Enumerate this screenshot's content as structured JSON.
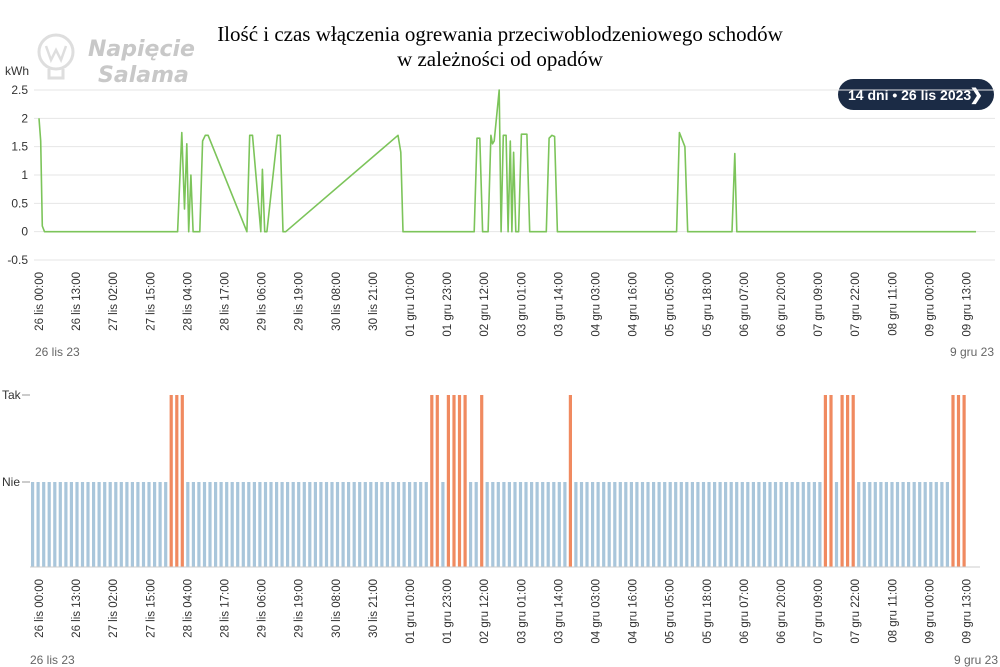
{
  "title": {
    "line1": "Ilość i czas włączenia ogrewania przeciwoblodzeniowego schodów",
    "line2": "w zależności od opadów"
  },
  "logo": {
    "line1": "Napięcie",
    "line2": "Salama"
  },
  "period_button": {
    "label": "14 dni • 26 lis 2023",
    "icon": "chevron-right-icon"
  },
  "colors": {
    "energy_line": "#7cc45a",
    "off": "#a9c6db",
    "on": "#f08a60",
    "button_bg": "#1b2b45"
  },
  "chart_data": [
    {
      "type": "line",
      "ylabel": "kWh",
      "ylim": [
        -0.5,
        2.5
      ],
      "yticks": [
        "2.5",
        "2",
        "1.5",
        "1",
        "0.5",
        "0",
        "-0.5"
      ],
      "xticks": [
        "26 lis 00:00",
        "26 lis 13:00",
        "27 lis 02:00",
        "27 lis 15:00",
        "28 lis 04:00",
        "28 lis 17:00",
        "29 lis 06:00",
        "29 lis 19:00",
        "30 lis 08:00",
        "30 lis 21:00",
        "01 gru 10:00",
        "01 gru 23:00",
        "02 gru 12:00",
        "03 gru 01:00",
        "03 gru 14:00",
        "04 gru 03:00",
        "04 gru 16:00",
        "05 gru 05:00",
        "05 gru 18:00",
        "06 gru 07:00",
        "06 gru 20:00",
        "07 gru 09:00",
        "07 gru 22:00",
        "08 gru 11:00",
        "09 gru 00:00",
        "09 gru 13:00"
      ],
      "x_start_label": "26 lis 23",
      "x_end_label": "9 gru 23",
      "grid": true,
      "series": [
        {
          "x_hours": [
            0,
            0.6,
            1.2,
            2,
            50,
            51.5,
            52.5,
            53.3,
            54,
            54.8,
            55.6,
            58,
            59,
            60,
            61,
            75,
            76,
            77,
            80,
            80.6,
            81.4,
            82.2,
            86,
            87,
            88,
            89,
            129.5,
            130.5,
            131.3,
            157,
            158,
            159,
            160,
            162,
            163,
            163.6,
            164.2,
            166,
            166.7,
            167.5,
            168.5,
            169.2,
            170,
            170.6,
            171.2,
            172,
            173,
            174,
            175,
            176,
            177,
            183,
            184,
            185,
            186,
            187,
            230,
            231,
            233,
            234,
            235,
            250,
            251,
            251.7,
            252.5,
            259,
            260,
            261,
            262,
            281,
            282,
            283,
            284,
            285,
            304,
            305,
            305.5,
            306,
            321,
            322,
            323,
            324,
            325,
            326,
            338
          ],
          "values": [
            2.0,
            1.6,
            0.1,
            0,
            0,
            1.75,
            0.4,
            1.55,
            0,
            1.0,
            0,
            0,
            1.6,
            1.7,
            1.7,
            0,
            1.7,
            1.7,
            0,
            1.1,
            0,
            0,
            1.7,
            1.7,
            0,
            0,
            1.7,
            1.4,
            0,
            0,
            1.65,
            1.65,
            0,
            0,
            1.7,
            1.55,
            1.6,
            2.5,
            0,
            1.7,
            1.7,
            0,
            1.6,
            0,
            1.4,
            0,
            0,
            1.72,
            1.72,
            1.72,
            0,
            0,
            1.65,
            1.7,
            1.68,
            0,
            0,
            1.75,
            1.5,
            0,
            0,
            0,
            1.38,
            0,
            0,
            0,
            0,
            0,
            0,
            0,
            0,
            0,
            0,
            0,
            0,
            0,
            0,
            0,
            0,
            0,
            0,
            0,
            0,
            0,
            0
          ]
        }
      ]
    },
    {
      "type": "bar",
      "ylabel": "",
      "yticks": [
        "Tak",
        "Nie"
      ],
      "xticks": [
        "26 lis 00:00",
        "26 lis 13:00",
        "27 lis 02:00",
        "27 lis 15:00",
        "28 lis 04:00",
        "28 lis 17:00",
        "29 lis 06:00",
        "29 lis 19:00",
        "30 lis 08:00",
        "30 lis 21:00",
        "01 gru 10:00",
        "01 gru 23:00",
        "02 gru 12:00",
        "03 gru 01:00",
        "03 gru 14:00",
        "04 gru 03:00",
        "04 gru 16:00",
        "05 gru 05:00",
        "05 gru 18:00",
        "06 gru 07:00",
        "06 gru 20:00",
        "07 gru 09:00",
        "07 gru 22:00",
        "08 gru 11:00",
        "09 gru 00:00",
        "09 gru 13:00"
      ],
      "x_start_label": "26 lis 23",
      "x_end_label": "9 gru 23",
      "on_hour_ranges": [
        [
          51,
          56
        ],
        [
          145,
          147
        ],
        [
          150,
          157
        ],
        [
          163,
          164
        ],
        [
          194,
          195
        ],
        [
          286,
          289
        ],
        [
          293,
          298
        ],
        [
          333,
          338
        ]
      ],
      "series": [
        {
          "values_note": ""
        }
      ]
    }
  ]
}
